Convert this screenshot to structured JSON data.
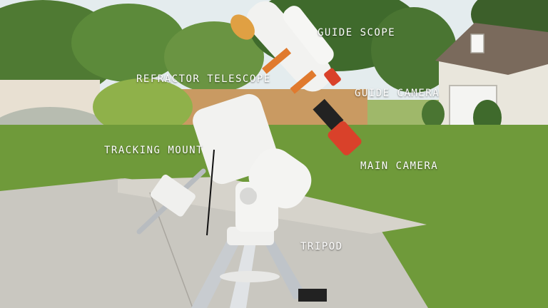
{
  "labels": {
    "guide_scope": "GUIDE SCOPE",
    "refractor_telescope": "REFRACTOR TELESCOPE",
    "guide_camera": "GUIDE CAMERA",
    "tracking_mount": "TRACKING MOUNT",
    "main_camera": "MAIN CAMERA",
    "tripod": "TRIPOD"
  },
  "colors": {
    "sky": "#dfe9ec",
    "grass": "#6f9a3a",
    "concrete": "#c9c7c0",
    "telescope_white": "#f2f2f0",
    "accent_orange": "#e07a2e",
    "camera_red": "#d9412a",
    "label_text": "#ffffff"
  }
}
